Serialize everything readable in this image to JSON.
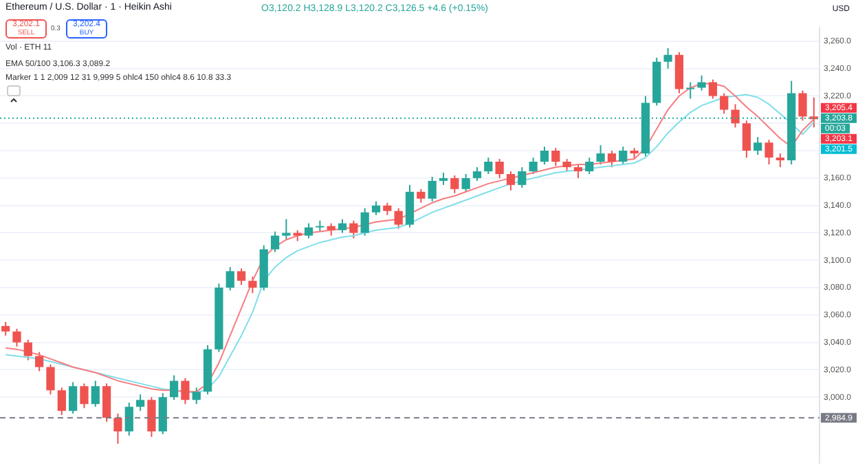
{
  "chart_data": {
    "type": "candlestick",
    "title": "Ethereum / U.S. Dollar · 1 · Heikin Ashi",
    "ylabel": "USD",
    "annotations": [
      "O3,120.2 H3,128.9 L3,120.2 C3,126.5 +4.6 (+0.15%)",
      "3,202.1",
      "SELL",
      "0.3",
      "3,202.4",
      "BUY",
      "Vol · ETH 11",
      "EMA 50/100 3,106.3 3,089.2",
      "Marker 1 1 2,009 12 31 9,999 5 ohlc4 150 ohlc4 8.6 10.8 33.3",
      "3,205.4",
      "3,203.1",
      "3,201.5",
      "00:03"
    ],
    "categories": [
      null,
      null,
      null,
      null,
      null,
      null,
      null,
      null,
      null,
      null,
      null,
      null,
      null,
      null,
      null,
      null,
      null,
      null,
      null,
      null,
      null,
      null,
      null,
      null,
      null,
      null,
      null,
      null,
      null,
      null,
      null,
      null,
      null,
      null,
      null,
      null,
      null,
      null,
      null,
      null,
      null,
      null,
      null,
      null,
      null,
      null,
      null,
      null,
      null,
      null,
      null,
      null,
      null,
      null,
      null,
      null,
      null,
      null,
      null,
      null,
      null,
      null,
      null,
      null,
      null,
      null,
      null,
      null,
      null,
      null,
      null,
      null,
      null
    ],
    "ohlc": [
      [
        3052,
        3055,
        3045,
        3048
      ],
      [
        3048,
        3050,
        3037,
        3040
      ],
      [
        3040,
        3042,
        3027,
        3030
      ],
      [
        3030,
        3033,
        3019,
        3022
      ],
      [
        3022,
        3024,
        3002,
        3005
      ],
      [
        3005,
        3007,
        2987,
        2990
      ],
      [
        2990,
        3011,
        2988,
        3008
      ],
      [
        3008,
        3010,
        2992,
        2995
      ],
      [
        2995,
        3012,
        2993,
        3008
      ],
      [
        3008,
        3010,
        2982,
        2985
      ],
      [
        2985,
        2988,
        2966,
        2975
      ],
      [
        2975,
        2996,
        2972,
        2993
      ],
      [
        2993,
        3002,
        2990,
        2998
      ],
      [
        2998,
        3000,
        2971,
        2975
      ],
      [
        2975,
        3003,
        2973,
        3000
      ],
      [
        3000,
        3016,
        2998,
        3012
      ],
      [
        3012,
        3014,
        2995,
        2998
      ],
      [
        2998,
        3007,
        2995,
        3004
      ],
      [
        3004,
        3038,
        3002,
        3035
      ],
      [
        3035,
        3083,
        3033,
        3080
      ],
      [
        3080,
        3095,
        3078,
        3092
      ],
      [
        3092,
        3094,
        3082,
        3085
      ],
      [
        3085,
        3088,
        3076,
        3080
      ],
      [
        3080,
        3111,
        3078,
        3108
      ],
      [
        3108,
        3121,
        3106,
        3118
      ],
      [
        3118,
        3130,
        3115,
        3120
      ],
      [
        3120,
        3122,
        3114,
        3118
      ],
      [
        3118,
        3127,
        3116,
        3124
      ],
      [
        3124,
        3129,
        3121,
        3125
      ],
      [
        3125,
        3127,
        3118,
        3122
      ],
      [
        3122,
        3130,
        3120,
        3127
      ],
      [
        3127,
        3129,
        3116,
        3120
      ],
      [
        3120,
        3138,
        3118,
        3135
      ],
      [
        3135,
        3143,
        3133,
        3140
      ],
      [
        3140,
        3142,
        3133,
        3136
      ],
      [
        3136,
        3138,
        3123,
        3126
      ],
      [
        3126,
        3155,
        3124,
        3150
      ],
      [
        3150,
        3152,
        3142,
        3145
      ],
      [
        3145,
        3161,
        3143,
        3158
      ],
      [
        3158,
        3164,
        3155,
        3160
      ],
      [
        3160,
        3162,
        3149,
        3152
      ],
      [
        3152,
        3163,
        3150,
        3160
      ],
      [
        3160,
        3168,
        3158,
        3165
      ],
      [
        3165,
        3175,
        3163,
        3172
      ],
      [
        3172,
        3174,
        3160,
        3163
      ],
      [
        3163,
        3165,
        3151,
        3155
      ],
      [
        3155,
        3168,
        3153,
        3165
      ],
      [
        3165,
        3175,
        3163,
        3172
      ],
      [
        3172,
        3183,
        3170,
        3180
      ],
      [
        3180,
        3182,
        3169,
        3172
      ],
      [
        3172,
        3174,
        3165,
        3168
      ],
      [
        3168,
        3170,
        3160,
        3165
      ],
      [
        3165,
        3175,
        3163,
        3172
      ],
      [
        3172,
        3184,
        3170,
        3178
      ],
      [
        3178,
        3180,
        3168,
        3172
      ],
      [
        3172,
        3183,
        3170,
        3180
      ],
      [
        3180,
        3182,
        3174,
        3178
      ],
      [
        3178,
        3220,
        3176,
        3215
      ],
      [
        3215,
        3248,
        3213,
        3245
      ],
      [
        3245,
        3255,
        3240,
        3250
      ],
      [
        3250,
        3252,
        3222,
        3225
      ],
      [
        3225,
        3230,
        3218,
        3226
      ],
      [
        3226,
        3235,
        3224,
        3230
      ],
      [
        3230,
        3232,
        3218,
        3220
      ],
      [
        3220,
        3222,
        3207,
        3210
      ],
      [
        3210,
        3214,
        3197,
        3200
      ],
      [
        3200,
        3202,
        3175,
        3180
      ],
      [
        3180,
        3190,
        3177,
        3186
      ],
      [
        3186,
        3188,
        3170,
        3175
      ],
      [
        3175,
        3178,
        3168,
        3173
      ],
      [
        3173,
        3231,
        3170,
        3222
      ],
      [
        3222,
        3224,
        3202,
        3205
      ],
      [
        3205,
        3219,
        3197,
        3203
      ]
    ],
    "colors": [
      "#ef5350",
      "#ef5350",
      "#ef5350",
      "#ef5350",
      "#ef5350",
      "#ef5350",
      "#26a69a",
      "#ef5350",
      "#26a69a",
      "#ef5350",
      "#ef5350",
      "#26a69a",
      "#26a69a",
      "#ef5350",
      "#26a69a",
      "#26a69a",
      "#ef5350",
      "#26a69a",
      "#26a69a",
      "#26a69a",
      "#26a69a",
      "#ef5350",
      "#ef5350",
      "#26a69a",
      "#26a69a",
      "#26a69a",
      "#ef5350",
      "#26a69a",
      "#26a69a",
      "#ef5350",
      "#26a69a",
      "#ef5350",
      "#26a69a",
      "#26a69a",
      "#ef5350",
      "#ef5350",
      "#26a69a",
      "#ef5350",
      "#26a69a",
      "#26a69a",
      "#ef5350",
      "#26a69a",
      "#26a69a",
      "#26a69a",
      "#ef5350",
      "#ef5350",
      "#26a69a",
      "#26a69a",
      "#26a69a",
      "#ef5350",
      "#ef5350",
      "#ef5350",
      "#26a69a",
      "#26a69a",
      "#ef5350",
      "#26a69a",
      "#ef5350",
      "#26a69a",
      "#26a69a",
      "#26a69a",
      "#ef5350",
      "#26a69a",
      "#26a69a",
      "#ef5350",
      "#ef5350",
      "#ef5350",
      "#ef5350",
      "#26a69a",
      "#ef5350",
      "#ef5350",
      "#26a69a",
      "#ef5350",
      "#ef5350"
    ],
    "series": [
      {
        "type": "line",
        "color": "#f77c80",
        "values": [
          3036,
          3035,
          3033,
          3031,
          3028,
          3025,
          3022,
          3020,
          3018,
          3015,
          3012,
          3010,
          3008,
          3006,
          3005,
          3005,
          3004,
          3004,
          3010,
          3025,
          3045,
          3065,
          3085,
          3102,
          3110,
          3115,
          3118,
          3120,
          3121,
          3122,
          3123,
          3124,
          3126,
          3128,
          3129,
          3130,
          3134,
          3138,
          3142,
          3145,
          3147,
          3150,
          3153,
          3156,
          3158,
          3160,
          3162,
          3164,
          3166,
          3168,
          3169,
          3170,
          3170,
          3171,
          3172,
          3173,
          3174,
          3182,
          3196,
          3210,
          3220,
          3226,
          3229,
          3229,
          3227,
          3220,
          3212,
          3205,
          3197,
          3189,
          3183,
          3195,
          3203
        ]
      },
      {
        "type": "line",
        "color": "#80deea",
        "values": [
          3031,
          3030,
          3029,
          3028,
          3026,
          3024,
          3022,
          3020,
          3018,
          3016,
          3014,
          3012,
          3010,
          3008,
          3006,
          3005,
          3004,
          3003,
          3006,
          3015,
          3030,
          3045,
          3062,
          3085,
          3095,
          3102,
          3107,
          3110,
          3113,
          3115,
          3117,
          3118,
          3120,
          3122,
          3123,
          3124,
          3127,
          3131,
          3135,
          3138,
          3141,
          3144,
          3147,
          3150,
          3153,
          3156,
          3158,
          3160,
          3162,
          3164,
          3165,
          3166,
          3167,
          3168,
          3169,
          3170,
          3171,
          3175,
          3183,
          3193,
          3201,
          3208,
          3213,
          3216,
          3219,
          3220,
          3221,
          3219,
          3214,
          3207,
          3200,
          3192,
          3201
        ]
      }
    ],
    "ylim": [
      2952,
      3270
    ],
    "yticks": [
      {
        "value": 3000,
        "label": "3,000.0"
      },
      {
        "value": 3020,
        "label": "3,020.0"
      },
      {
        "value": 3040,
        "label": "3,040.0"
      },
      {
        "value": 3060,
        "label": "3,060.0"
      },
      {
        "value": 3080,
        "label": "3,080.0"
      },
      {
        "value": 3100,
        "label": "3,100.0"
      },
      {
        "value": 3120,
        "label": "3,120.0"
      },
      {
        "value": 3140,
        "label": "3,140.0"
      },
      {
        "value": 3160,
        "label": "3,160.0"
      },
      {
        "value": 3180,
        "label": null
      },
      {
        "value": 3200,
        "label": null
      },
      {
        "value": 3220,
        "label": "3,220.0"
      },
      {
        "value": 3240,
        "label": "3,240.0"
      },
      {
        "value": 3260,
        "label": "3,260.0"
      }
    ],
    "grid": "y",
    "ref_lines": [
      {
        "axis": "y",
        "value": 3203.8,
        "label": "3,203.8",
        "color": "#26a69a",
        "line_style": "dotted"
      },
      {
        "axis": "y",
        "value": 2984.9,
        "label": "2,984.9",
        "color": "#787b86",
        "line_style": "dashed"
      }
    ]
  }
}
